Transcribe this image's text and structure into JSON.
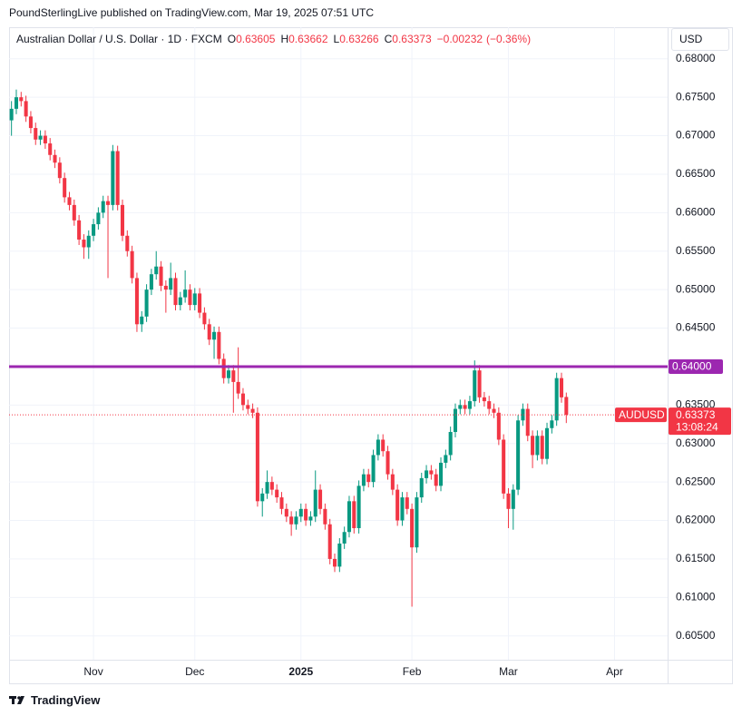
{
  "header": "PoundSterlingLive published on TradingView.com, Mar 19, 2025 07:51 UTC",
  "footer": "TradingView",
  "chart_data": {
    "type": "candlestick",
    "title": "Australian Dollar / U.S. Dollar · 1D · FXCM",
    "legend_keys": [
      "O",
      "H",
      "L",
      "C"
    ],
    "legend_values": [
      0.63605,
      0.63662,
      0.63266,
      0.63373
    ],
    "change": {
      "value": -0.00232,
      "label": "−0.00232"
    },
    "change_percent": {
      "value": -0.36,
      "label": "(−0.36%)"
    },
    "currency": "USD",
    "grid": true,
    "up_color": "#089981",
    "down_color": "#f23645",
    "ylim": [
      0.6019,
      0.6841
    ],
    "yticks": [
      {
        "value": 0.605,
        "label": "0.60500"
      },
      {
        "value": 0.61,
        "label": "0.61000"
      },
      {
        "value": 0.615,
        "label": "0.61500"
      },
      {
        "value": 0.62,
        "label": "0.62000"
      },
      {
        "value": 0.625,
        "label": "0.62500"
      },
      {
        "value": 0.63,
        "label": "0.63000"
      },
      {
        "value": 0.635,
        "label": "0.63500"
      },
      {
        "value": 0.64,
        "label": "0.64000"
      },
      {
        "value": 0.645,
        "label": "0.64500"
      },
      {
        "value": 0.65,
        "label": "0.65000"
      },
      {
        "value": 0.655,
        "label": "0.65500"
      },
      {
        "value": 0.66,
        "label": "0.66000"
      },
      {
        "value": 0.665,
        "label": "0.66500"
      },
      {
        "value": 0.67,
        "label": "0.67000"
      },
      {
        "value": 0.675,
        "label": "0.67500"
      },
      {
        "value": 0.68,
        "label": "0.68000"
      }
    ],
    "xlim": [
      -0.5,
      136
    ],
    "xticks": [
      {
        "value": 17,
        "label": "Nov"
      },
      {
        "value": 38,
        "label": "Dec"
      },
      {
        "value": 60,
        "label": "2025"
      },
      {
        "value": 83,
        "label": "Feb"
      },
      {
        "value": 103,
        "label": "Mar"
      },
      {
        "value": 125,
        "label": "Apr"
      }
    ],
    "bold_xticks": [
      false,
      false,
      true,
      false,
      false,
      false
    ],
    "open": [
      0.672,
      0.6735,
      0.675,
      0.6745,
      0.6725,
      0.671,
      0.6695,
      0.67,
      0.669,
      0.6675,
      0.6665,
      0.6645,
      0.662,
      0.661,
      0.659,
      0.6565,
      0.6555,
      0.657,
      0.6585,
      0.66,
      0.6615,
      0.661,
      0.668,
      0.661,
      0.657,
      0.655,
      0.6515,
      0.6455,
      0.6465,
      0.65,
      0.652,
      0.653,
      0.6505,
      0.65,
      0.6515,
      0.648,
      0.649,
      0.65,
      0.648,
      0.6495,
      0.647,
      0.6455,
      0.6435,
      0.6445,
      0.641,
      0.6385,
      0.6395,
      0.638,
      0.6365,
      0.635,
      0.6345,
      0.634,
      0.6225,
      0.6235,
      0.625,
      0.624,
      0.623,
      0.6215,
      0.6205,
      0.6195,
      0.6205,
      0.6215,
      0.62,
      0.6205,
      0.624,
      0.6215,
      0.6195,
      0.615,
      0.614,
      0.617,
      0.6185,
      0.6225,
      0.619,
      0.6245,
      0.626,
      0.625,
      0.6285,
      0.6305,
      0.629,
      0.626,
      0.624,
      0.62,
      0.623,
      0.6215,
      0.6165,
      0.623,
      0.6255,
      0.6265,
      0.626,
      0.6245,
      0.6275,
      0.6285,
      0.6315,
      0.6345,
      0.635,
      0.6345,
      0.6355,
      0.6395,
      0.636,
      0.6355,
      0.6345,
      0.634,
      0.6305,
      0.6235,
      0.6215,
      0.624,
      0.633,
      0.6345,
      0.631,
      0.6285,
      0.631,
      0.628,
      0.632,
      0.633,
      0.6385,
      0.63605
    ],
    "high": [
      0.6745,
      0.676,
      0.6757,
      0.6752,
      0.6732,
      0.6717,
      0.6707,
      0.6707,
      0.6697,
      0.6682,
      0.6672,
      0.6652,
      0.6627,
      0.6617,
      0.6597,
      0.6572,
      0.6577,
      0.6592,
      0.6607,
      0.6622,
      0.6622,
      0.6688,
      0.6687,
      0.6617,
      0.6577,
      0.6557,
      0.6522,
      0.6472,
      0.6507,
      0.6527,
      0.655,
      0.6537,
      0.6512,
      0.6535,
      0.6522,
      0.6497,
      0.6525,
      0.6507,
      0.6502,
      0.6502,
      0.6477,
      0.6462,
      0.6452,
      0.6452,
      0.6417,
      0.6402,
      0.6402,
      0.6425,
      0.6372,
      0.6357,
      0.6352,
      0.6347,
      0.6242,
      0.6265,
      0.6257,
      0.6247,
      0.6237,
      0.6222,
      0.6212,
      0.6212,
      0.6222,
      0.6222,
      0.6212,
      0.6265,
      0.6247,
      0.6222,
      0.6202,
      0.6157,
      0.6177,
      0.6192,
      0.6232,
      0.6232,
      0.6252,
      0.6267,
      0.6267,
      0.6292,
      0.6312,
      0.6312,
      0.6297,
      0.6267,
      0.6247,
      0.6237,
      0.6237,
      0.6222,
      0.6237,
      0.6262,
      0.6272,
      0.6272,
      0.6267,
      0.6282,
      0.6292,
      0.6322,
      0.6352,
      0.6357,
      0.6357,
      0.6362,
      0.6408,
      0.6402,
      0.6367,
      0.6362,
      0.6352,
      0.6347,
      0.6312,
      0.6242,
      0.6247,
      0.6337,
      0.6352,
      0.6352,
      0.6317,
      0.6317,
      0.6317,
      0.6327,
      0.6337,
      0.6392,
      0.6392,
      0.63662
    ],
    "low": [
      0.67,
      0.6728,
      0.6738,
      0.6718,
      0.6703,
      0.6688,
      0.6688,
      0.6683,
      0.6668,
      0.6658,
      0.6638,
      0.6613,
      0.6603,
      0.6583,
      0.6558,
      0.654,
      0.654,
      0.6563,
      0.6578,
      0.6593,
      0.6515,
      0.6603,
      0.6603,
      0.6563,
      0.6543,
      0.6508,
      0.6445,
      0.6445,
      0.6458,
      0.6493,
      0.6513,
      0.6498,
      0.647,
      0.6493,
      0.6473,
      0.6473,
      0.6483,
      0.6473,
      0.6473,
      0.6463,
      0.6448,
      0.6428,
      0.641,
      0.6403,
      0.6378,
      0.6378,
      0.634,
      0.6358,
      0.6343,
      0.6338,
      0.6333,
      0.6218,
      0.6205,
      0.6228,
      0.6233,
      0.6223,
      0.6208,
      0.6198,
      0.618,
      0.6188,
      0.6198,
      0.6193,
      0.6193,
      0.6198,
      0.6208,
      0.6188,
      0.6143,
      0.6133,
      0.6133,
      0.6163,
      0.6178,
      0.6183,
      0.6183,
      0.6238,
      0.6243,
      0.6243,
      0.6278,
      0.6283,
      0.6253,
      0.6233,
      0.6193,
      0.6193,
      0.6208,
      0.6088,
      0.6158,
      0.6223,
      0.6248,
      0.6253,
      0.6238,
      0.6238,
      0.6268,
      0.6278,
      0.6308,
      0.6338,
      0.6338,
      0.6338,
      0.6348,
      0.6353,
      0.6348,
      0.6338,
      0.6333,
      0.6298,
      0.6228,
      0.619,
      0.6188,
      0.6233,
      0.6323,
      0.6303,
      0.6268,
      0.6278,
      0.6273,
      0.6273,
      0.6313,
      0.6323,
      0.6353,
      0.63266
    ],
    "close": [
      0.6735,
      0.675,
      0.6745,
      0.6725,
      0.671,
      0.6695,
      0.67,
      0.669,
      0.6675,
      0.6665,
      0.6645,
      0.662,
      0.661,
      0.659,
      0.6565,
      0.6555,
      0.657,
      0.6585,
      0.66,
      0.6615,
      0.661,
      0.668,
      0.661,
      0.657,
      0.655,
      0.6515,
      0.6455,
      0.6465,
      0.65,
      0.652,
      0.653,
      0.6505,
      0.65,
      0.6515,
      0.648,
      0.649,
      0.65,
      0.648,
      0.6495,
      0.647,
      0.6455,
      0.6435,
      0.6445,
      0.641,
      0.6385,
      0.6395,
      0.638,
      0.6365,
      0.635,
      0.6345,
      0.634,
      0.6225,
      0.6235,
      0.625,
      0.624,
      0.623,
      0.6215,
      0.6205,
      0.6195,
      0.6205,
      0.6215,
      0.62,
      0.6205,
      0.624,
      0.6215,
      0.6195,
      0.615,
      0.614,
      0.617,
      0.6185,
      0.6225,
      0.619,
      0.6245,
      0.626,
      0.625,
      0.6285,
      0.6305,
      0.629,
      0.626,
      0.624,
      0.62,
      0.623,
      0.6215,
      0.6165,
      0.623,
      0.6255,
      0.6265,
      0.626,
      0.6245,
      0.6275,
      0.6285,
      0.6315,
      0.6345,
      0.635,
      0.6345,
      0.6355,
      0.6395,
      0.636,
      0.6355,
      0.6345,
      0.634,
      0.6305,
      0.6235,
      0.6215,
      0.624,
      0.633,
      0.6345,
      0.631,
      0.6285,
      0.631,
      0.628,
      0.632,
      0.633,
      0.6385,
      0.636,
      0.63373
    ],
    "horizontal_line": {
      "value": 0.64,
      "label": "0.64000",
      "color": "#9c27b0"
    },
    "last_price": {
      "symbol": "AUDUSD",
      "value": 0.63373,
      "countdown": "13:08:24",
      "color": "#f23645"
    }
  }
}
